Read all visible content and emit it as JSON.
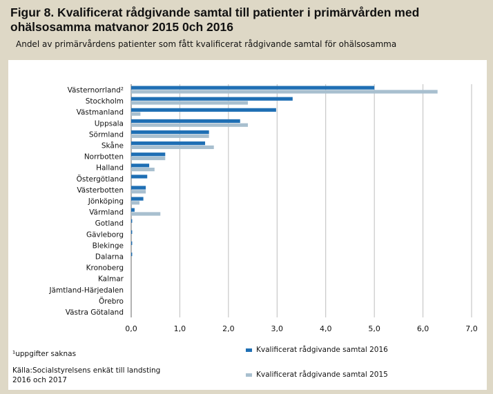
{
  "title": "Figur 8. Kvalificerat rådgivande samtal till patienter i primärvården med ohälsosamma matvanor 2015 0ch 2016",
  "subtitle": "Andel av primärvårdens patienter som fått kvalificerat rådgivande samtal för ohälsosamma",
  "footnote": "¹uppgifter saknas",
  "source": "Källa:Socialstyrelsens enkät till landsting 2016 och 2017",
  "colors": {
    "series_2016": "#1f6fb4",
    "series_2015": "#a8bfcf",
    "background": "#ded8c6",
    "panel": "#ffffff"
  },
  "chart_data": {
    "type": "bar",
    "orientation": "horizontal",
    "categories": [
      "Västernorrland²",
      "Stockholm",
      "Västmanland",
      "Uppsala",
      "Sörmland",
      "Skåne",
      "Norrbotten",
      "Halland",
      "Östergötland",
      "Västerbotten",
      "Jönköping",
      "Värmland",
      "Gotland",
      "Gävleborg",
      "Blekinge",
      "Dalarna",
      "Kronoberg",
      "Kalmar",
      "Jämtland-Härjedalen",
      "Örebro",
      "Västra Götaland"
    ],
    "series": [
      {
        "name": "Kvalificerat rådgivande samtal 2016",
        "color": "#1f6fb4",
        "values": [
          5.0,
          3.32,
          2.98,
          2.24,
          1.6,
          1.52,
          0.7,
          0.37,
          0.33,
          0.3,
          0.25,
          0.07,
          0.02,
          0.02,
          0.02,
          0.02,
          0.0,
          0.0,
          0.0,
          0.0,
          0.0
        ]
      },
      {
        "name": "Kvalificerat rådgivande samtal 2015",
        "color": "#a8bfcf",
        "values": [
          6.3,
          2.4,
          0.19,
          2.4,
          1.6,
          1.7,
          0.7,
          0.48,
          0.0,
          0.3,
          0.17,
          0.6,
          0.0,
          0.0,
          0.0,
          0.0,
          0.0,
          0.0,
          0.0,
          0.0,
          0.0
        ]
      }
    ],
    "xlim": [
      0,
      7
    ],
    "xticks": [
      "0,0",
      "1,0",
      "2,0",
      "3,0",
      "4,0",
      "5,0",
      "6,0",
      "7,0"
    ],
    "grid": true,
    "legend": "bottom-right"
  }
}
